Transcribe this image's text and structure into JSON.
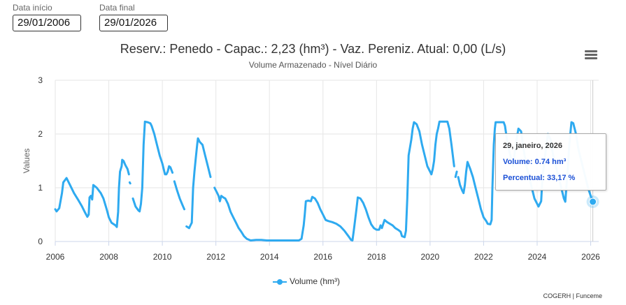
{
  "filters": {
    "start_label": "Data início",
    "start_value": "29/01/2006",
    "end_label": "Data final",
    "end_value": "29/01/2026"
  },
  "chart_data": {
    "type": "line",
    "title": "Reserv.: Penedo - Capac.: 2,23 (hm³) - Vaz. Pereniz. Atual: 0,00 (L/s)",
    "subtitle": "Volume Armazenado - Nível Diário",
    "ylabel": "Values",
    "xlabel": "",
    "ylim": [
      0,
      3
    ],
    "xlim": [
      2006,
      2026.3
    ],
    "y_ticks": [
      "0",
      "1",
      "2",
      "3"
    ],
    "x_ticks": [
      "2006",
      "2008",
      "2010",
      "2012",
      "2014",
      "2016",
      "2018",
      "2020",
      "2022",
      "2024",
      "2026"
    ],
    "grid": true,
    "legend_position": "bottom",
    "series": [
      {
        "name": "Volume (hm³)",
        "color": "#2eaaf0",
        "segments": [
          [
            [
              2006.0,
              0.6
            ],
            [
              2006.05,
              0.56
            ],
            [
              2006.15,
              0.62
            ],
            [
              2006.25,
              0.9
            ],
            [
              2006.3,
              1.1
            ],
            [
              2006.42,
              1.18
            ],
            [
              2006.55,
              1.05
            ],
            [
              2006.7,
              0.9
            ],
            [
              2006.85,
              0.78
            ],
            [
              2007.0,
              0.65
            ],
            [
              2007.1,
              0.55
            ],
            [
              2007.2,
              0.46
            ],
            [
              2007.25,
              0.5
            ],
            [
              2007.28,
              0.82
            ],
            [
              2007.33,
              0.85
            ],
            [
              2007.38,
              0.78
            ],
            [
              2007.42,
              1.05
            ],
            [
              2007.55,
              1.0
            ],
            [
              2007.7,
              0.9
            ],
            [
              2007.8,
              0.8
            ],
            [
              2007.92,
              0.6
            ],
            [
              2008.0,
              0.45
            ],
            [
              2008.1,
              0.35
            ],
            [
              2008.25,
              0.3
            ],
            [
              2008.3,
              0.27
            ],
            [
              2008.35,
              0.55
            ],
            [
              2008.38,
              1.0
            ],
            [
              2008.42,
              1.3
            ],
            [
              2008.48,
              1.4
            ],
            [
              2008.5,
              1.52
            ],
            [
              2008.55,
              1.5
            ],
            [
              2008.62,
              1.42
            ],
            [
              2008.7,
              1.35
            ],
            [
              2008.75,
              1.25
            ]
          ],
          [
            [
              2008.78,
              1.1
            ],
            [
              2008.8,
              1.08
            ]
          ],
          [
            [
              2008.9,
              0.8
            ],
            [
              2009.0,
              0.65
            ],
            [
              2009.1,
              0.58
            ],
            [
              2009.15,
              0.56
            ],
            [
              2009.2,
              0.7
            ],
            [
              2009.25,
              1.0
            ],
            [
              2009.3,
              1.8
            ],
            [
              2009.35,
              2.23
            ],
            [
              2009.45,
              2.22
            ],
            [
              2009.55,
              2.2
            ],
            [
              2009.6,
              2.15
            ],
            [
              2009.7,
              2.0
            ],
            [
              2009.8,
              1.8
            ],
            [
              2009.9,
              1.6
            ],
            [
              2010.0,
              1.45
            ],
            [
              2010.05,
              1.35
            ],
            [
              2010.1,
              1.25
            ],
            [
              2010.15,
              1.25
            ],
            [
              2010.2,
              1.3
            ],
            [
              2010.25,
              1.4
            ],
            [
              2010.3,
              1.38
            ],
            [
              2010.38,
              1.28
            ]
          ],
          [
            [
              2010.45,
              1.12
            ],
            [
              2010.55,
              0.95
            ],
            [
              2010.65,
              0.8
            ],
            [
              2010.75,
              0.68
            ],
            [
              2010.82,
              0.6
            ]
          ],
          [
            [
              2010.9,
              0.28
            ],
            [
              2011.0,
              0.25
            ],
            [
              2011.05,
              0.3
            ],
            [
              2011.1,
              0.35
            ],
            [
              2011.15,
              1.0
            ],
            [
              2011.2,
              1.3
            ],
            [
              2011.25,
              1.55
            ],
            [
              2011.3,
              1.8
            ],
            [
              2011.33,
              1.92
            ],
            [
              2011.4,
              1.85
            ],
            [
              2011.5,
              1.8
            ],
            [
              2011.6,
              1.6
            ],
            [
              2011.7,
              1.4
            ],
            [
              2011.8,
              1.2
            ]
          ],
          [
            [
              2011.95,
              1.0
            ],
            [
              2012.05,
              0.9
            ],
            [
              2012.1,
              0.85
            ],
            [
              2012.15,
              0.75
            ],
            [
              2012.2,
              0.85
            ],
            [
              2012.28,
              0.82
            ],
            [
              2012.35,
              0.8
            ],
            [
              2012.45,
              0.7
            ],
            [
              2012.55,
              0.55
            ],
            [
              2012.65,
              0.45
            ],
            [
              2012.75,
              0.35
            ],
            [
              2012.85,
              0.25
            ],
            [
              2012.95,
              0.18
            ],
            [
              2013.05,
              0.1
            ],
            [
              2013.15,
              0.05
            ],
            [
              2013.3,
              0.02
            ],
            [
              2013.5,
              0.03
            ],
            [
              2013.7,
              0.03
            ],
            [
              2013.9,
              0.02
            ],
            [
              2014.1,
              0.02
            ],
            [
              2014.5,
              0.02
            ],
            [
              2014.9,
              0.02
            ],
            [
              2015.1,
              0.02
            ],
            [
              2015.2,
              0.05
            ],
            [
              2015.28,
              0.3
            ],
            [
              2015.32,
              0.5
            ],
            [
              2015.36,
              0.75
            ],
            [
              2015.45,
              0.76
            ],
            [
              2015.55,
              0.75
            ],
            [
              2015.6,
              0.83
            ],
            [
              2015.7,
              0.8
            ],
            [
              2015.8,
              0.72
            ],
            [
              2015.9,
              0.6
            ],
            [
              2016.0,
              0.5
            ],
            [
              2016.1,
              0.4
            ],
            [
              2016.2,
              0.38
            ],
            [
              2016.35,
              0.36
            ],
            [
              2016.5,
              0.33
            ],
            [
              2016.65,
              0.28
            ],
            [
              2016.8,
              0.2
            ],
            [
              2016.95,
              0.1
            ],
            [
              2017.05,
              0.03
            ],
            [
              2017.1,
              0.02
            ],
            [
              2017.15,
              0.2
            ],
            [
              2017.2,
              0.4
            ],
            [
              2017.25,
              0.6
            ],
            [
              2017.3,
              0.82
            ],
            [
              2017.4,
              0.8
            ],
            [
              2017.5,
              0.72
            ],
            [
              2017.6,
              0.6
            ],
            [
              2017.7,
              0.45
            ],
            [
              2017.8,
              0.32
            ],
            [
              2017.9,
              0.25
            ],
            [
              2018.0,
              0.22
            ],
            [
              2018.1,
              0.22
            ],
            [
              2018.15,
              0.3
            ],
            [
              2018.2,
              0.25
            ],
            [
              2018.3,
              0.4
            ],
            [
              2018.4,
              0.36
            ],
            [
              2018.5,
              0.33
            ],
            [
              2018.6,
              0.3
            ],
            [
              2018.7,
              0.25
            ],
            [
              2018.8,
              0.22
            ],
            [
              2018.9,
              0.18
            ],
            [
              2018.95,
              0.1
            ],
            [
              2019.05,
              0.08
            ],
            [
              2019.1,
              0.2
            ],
            [
              2019.15,
              0.8
            ],
            [
              2019.2,
              1.6
            ],
            [
              2019.3,
              1.9
            ],
            [
              2019.35,
              2.1
            ],
            [
              2019.4,
              2.22
            ],
            [
              2019.5,
              2.18
            ],
            [
              2019.6,
              2.05
            ],
            [
              2019.7,
              1.8
            ],
            [
              2019.8,
              1.6
            ],
            [
              2019.9,
              1.4
            ],
            [
              2020.0,
              1.3
            ],
            [
              2020.05,
              1.25
            ],
            [
              2020.1,
              1.35
            ],
            [
              2020.15,
              1.5
            ],
            [
              2020.2,
              1.8
            ],
            [
              2020.25,
              2.0
            ],
            [
              2020.3,
              2.1
            ],
            [
              2020.35,
              2.23
            ],
            [
              2020.5,
              2.23
            ],
            [
              2020.65,
              2.23
            ],
            [
              2020.72,
              2.1
            ],
            [
              2020.8,
              1.8
            ],
            [
              2020.85,
              1.6
            ],
            [
              2020.9,
              1.4
            ]
          ],
          [
            [
              2020.95,
              1.2
            ],
            [
              2021.0,
              1.3
            ]
          ],
          [
            [
              2021.05,
              1.2
            ],
            [
              2021.12,
              1.05
            ],
            [
              2021.2,
              0.95
            ],
            [
              2021.25,
              0.9
            ],
            [
              2021.3,
              1.05
            ],
            [
              2021.35,
              1.3
            ],
            [
              2021.4,
              1.48
            ],
            [
              2021.5,
              1.35
            ],
            [
              2021.6,
              1.2
            ],
            [
              2021.7,
              1.0
            ],
            [
              2021.8,
              0.8
            ],
            [
              2021.9,
              0.6
            ],
            [
              2022.0,
              0.45
            ],
            [
              2022.1,
              0.38
            ],
            [
              2022.15,
              0.33
            ],
            [
              2022.25,
              0.32
            ],
            [
              2022.3,
              0.4
            ],
            [
              2022.33,
              1.0
            ],
            [
              2022.38,
              1.8
            ],
            [
              2022.42,
              2.1
            ],
            [
              2022.45,
              2.22
            ],
            [
              2022.6,
              2.22
            ],
            [
              2022.75,
              2.22
            ],
            [
              2022.8,
              2.15
            ],
            [
              2022.9,
              1.8
            ],
            [
              2023.0,
              1.6
            ],
            [
              2023.1,
              1.4
            ],
            [
              2023.2,
              1.8
            ],
            [
              2023.3,
              2.1
            ],
            [
              2023.4,
              2.05
            ],
            [
              2023.5,
              1.7
            ],
            [
              2023.6,
              1.4
            ],
            [
              2023.7,
              1.2
            ],
            [
              2023.8,
              1.0
            ],
            [
              2023.9,
              0.8
            ],
            [
              2024.0,
              0.7
            ],
            [
              2024.05,
              0.65
            ],
            [
              2024.15,
              0.75
            ],
            [
              2024.2,
              1.2
            ],
            [
              2024.3,
              1.6
            ],
            [
              2024.4,
              2.0
            ],
            [
              2024.5,
              1.9
            ],
            [
              2024.6,
              1.6
            ],
            [
              2024.7,
              1.4
            ],
            [
              2024.8,
              1.2
            ],
            [
              2024.9,
              1.0
            ],
            [
              2025.0,
              0.8
            ],
            [
              2025.05,
              0.74
            ],
            [
              2025.15,
              1.4
            ],
            [
              2025.2,
              1.8
            ],
            [
              2025.28,
              2.22
            ],
            [
              2025.35,
              2.2
            ],
            [
              2025.45,
              2.0
            ],
            [
              2025.55,
              1.7
            ],
            [
              2025.7,
              1.4
            ],
            [
              2025.8,
              1.2
            ],
            [
              2025.9,
              1.0
            ],
            [
              2026.0,
              0.85
            ],
            [
              2026.08,
              0.74
            ]
          ]
        ]
      }
    ],
    "highlight": {
      "x": 2026.08,
      "y": 0.74
    }
  },
  "tooltip": {
    "date": "29, janeiro, 2026",
    "volume": "Volume: 0.74 hm³",
    "percent": "Percentual: 33,17 %"
  },
  "legend": {
    "label": "Volume (hm³)"
  },
  "credits": "COGERH | Funceme"
}
